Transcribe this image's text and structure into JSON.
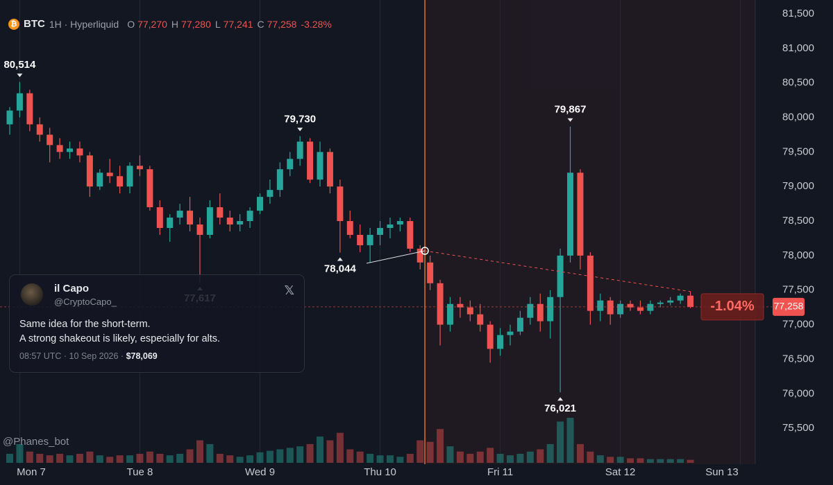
{
  "header": {
    "symbol": "BTC",
    "interval": "1H · Hyperliquid",
    "ohlc": [
      {
        "key": "O",
        "value": "77,270"
      },
      {
        "key": "H",
        "value": "77,280"
      },
      {
        "key": "L",
        "value": "77,241"
      },
      {
        "key": "C",
        "value": "77,258"
      }
    ],
    "change": "-3.28%"
  },
  "tweet": {
    "name": "il Capo",
    "handle": "@CryptoCapo_",
    "lines": [
      "Same idea for the short-term.",
      "A strong shakeout is likely, especially for alts."
    ],
    "time": "08:57 UTC · 10 Sep 2026 · ",
    "price": {
      "value": 78069,
      "label": "$78,069"
    },
    "change_since": "-1.04%"
  },
  "watermark": "@Phanes_bot",
  "chart_data": {
    "type": "candlestick",
    "day_labels": [
      "Mon 7",
      "Tue 8",
      "Wed 9",
      "Thu 10",
      "Fri 11",
      "Sat 12",
      "Sun 13"
    ],
    "candles": [
      [
        79900,
        80150,
        79750,
        80100
      ],
      [
        80100,
        80514,
        80000,
        80350
      ],
      [
        80350,
        80400,
        79800,
        79900
      ],
      [
        79900,
        80000,
        79650,
        79750
      ],
      [
        79750,
        79850,
        79350,
        79600
      ],
      [
        79600,
        79700,
        79400,
        79500
      ],
      [
        79500,
        79650,
        79400,
        79550
      ],
      [
        79550,
        79650,
        79350,
        79450
      ],
      [
        79450,
        79500,
        78850,
        79000
      ],
      [
        79000,
        79250,
        78950,
        79200
      ],
      [
        79200,
        79400,
        79050,
        79150
      ],
      [
        79150,
        79300,
        78900,
        79000
      ],
      [
        79000,
        79350,
        78900,
        79300
      ],
      [
        79300,
        79450,
        79150,
        79250
      ],
      [
        79250,
        79300,
        78650,
        78700
      ],
      [
        78700,
        78800,
        78300,
        78400
      ],
      [
        78400,
        78600,
        78200,
        78550
      ],
      [
        78550,
        78750,
        78450,
        78650
      ],
      [
        78650,
        78850,
        78350,
        78450
      ],
      [
        78450,
        78550,
        77617,
        78300
      ],
      [
        78300,
        78800,
        78250,
        78700
      ],
      [
        78700,
        78900,
        78450,
        78550
      ],
      [
        78550,
        78650,
        78350,
        78450
      ],
      [
        78450,
        78600,
        78350,
        78500
      ],
      [
        78500,
        78700,
        78400,
        78650
      ],
      [
        78650,
        78900,
        78600,
        78850
      ],
      [
        78850,
        79100,
        78750,
        78950
      ],
      [
        78950,
        79350,
        78850,
        79250
      ],
      [
        79250,
        79500,
        79150,
        79400
      ],
      [
        79400,
        79730,
        79300,
        79650
      ],
      [
        79650,
        79700,
        79050,
        79100
      ],
      [
        79100,
        79650,
        79000,
        79500
      ],
      [
        79500,
        79550,
        78900,
        79000
      ],
      [
        79000,
        79100,
        78044,
        78500
      ],
      [
        78500,
        78650,
        78250,
        78300
      ],
      [
        78300,
        78450,
        78050,
        78150
      ],
      [
        78150,
        78400,
        77900,
        78300
      ],
      [
        78300,
        78500,
        78150,
        78400
      ],
      [
        78400,
        78550,
        78250,
        78450
      ],
      [
        78450,
        78550,
        78350,
        78500
      ],
      [
        78500,
        78550,
        78050,
        78100
      ],
      [
        78100,
        78150,
        77800,
        77900
      ],
      [
        77900,
        78000,
        77500,
        77600
      ],
      [
        77600,
        77650,
        76700,
        77000
      ],
      [
        77000,
        77400,
        76900,
        77300
      ],
      [
        77300,
        77400,
        77100,
        77250
      ],
      [
        77250,
        77350,
        77050,
        77150
      ],
      [
        77150,
        77300,
        76900,
        77000
      ],
      [
        77000,
        77050,
        76450,
        76650
      ],
      [
        76650,
        76950,
        76550,
        76850
      ],
      [
        76850,
        77000,
        76700,
        76900
      ],
      [
        76900,
        77200,
        76850,
        77100
      ],
      [
        77100,
        77400,
        77000,
        77300
      ],
      [
        77300,
        77450,
        76900,
        77050
      ],
      [
        77050,
        77500,
        76800,
        77400
      ],
      [
        77400,
        78100,
        76021,
        78000
      ],
      [
        78000,
        79867,
        77900,
        79200
      ],
      [
        79200,
        79250,
        77800,
        78000
      ],
      [
        78000,
        78050,
        77000,
        77200
      ],
      [
        77200,
        77450,
        77050,
        77350
      ],
      [
        77350,
        77400,
        77000,
        77150
      ],
      [
        77150,
        77350,
        77100,
        77300
      ],
      [
        77300,
        77350,
        77200,
        77250
      ],
      [
        77250,
        77350,
        77150,
        77200
      ],
      [
        77200,
        77350,
        77150,
        77300
      ],
      [
        77300,
        77350,
        77250,
        77320
      ],
      [
        77320,
        77400,
        77280,
        77350
      ],
      [
        77350,
        77450,
        77300,
        77420
      ],
      [
        77420,
        77480,
        77240,
        77258
      ]
    ],
    "volume": [
      12,
      25,
      15,
      12,
      10,
      12,
      10,
      12,
      15,
      10,
      8,
      10,
      10,
      12,
      15,
      12,
      10,
      12,
      18,
      30,
      25,
      12,
      10,
      8,
      10,
      14,
      16,
      18,
      20,
      22,
      25,
      35,
      30,
      40,
      18,
      15,
      12,
      10,
      10,
      8,
      12,
      30,
      28,
      45,
      22,
      15,
      12,
      15,
      20,
      12,
      10,
      12,
      15,
      18,
      25,
      55,
      60,
      25,
      15,
      10,
      8,
      8,
      6,
      6,
      5,
      5,
      5,
      5,
      4
    ],
    "annotations": [
      {
        "value": 80514,
        "label": "80,514"
      },
      {
        "value": 79730,
        "label": "79,730"
      },
      {
        "value": 78044,
        "label": "78,044"
      },
      {
        "value": 77617,
        "label": "77,617"
      },
      {
        "value": 79867,
        "label": "79,867"
      },
      {
        "value": 76021,
        "label": "76,021"
      }
    ],
    "last_price": {
      "value": 77258,
      "label": "77,258"
    },
    "ylim": [
      74980,
      81700
    ],
    "yticks": [
      {
        "value": 75500,
        "label": "75,500"
      },
      {
        "value": 76000,
        "label": "76,000"
      },
      {
        "value": 76500,
        "label": "76,500"
      },
      {
        "value": 77000,
        "label": "77,000"
      },
      {
        "value": 77500,
        "label": "77,500"
      },
      {
        "value": 78000,
        "label": "78,000"
      },
      {
        "value": 78500,
        "label": "78,500"
      },
      {
        "value": 79000,
        "label": "79,000"
      },
      {
        "value": 79500,
        "label": "79,500"
      },
      {
        "value": 80000,
        "label": "80,000"
      },
      {
        "value": 80500,
        "label": "80,500"
      },
      {
        "value": 81000,
        "label": "81,000"
      },
      {
        "value": 81500,
        "label": "81,500"
      }
    ],
    "grid": true,
    "up_color": "#26a69a",
    "down_color": "#ef5350"
  }
}
